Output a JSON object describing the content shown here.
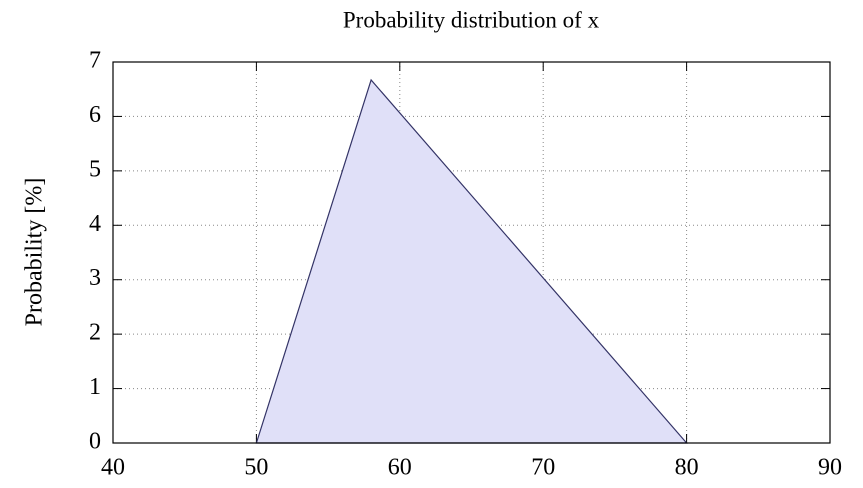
{
  "chart_data": {
    "type": "area",
    "title": "Probability distribution of x",
    "y_label": "Probability [%]",
    "x": [
      50,
      58,
      80
    ],
    "values": [
      0,
      6.67,
      0
    ],
    "color": "#e0e0f8",
    "line_color": "#333366",
    "xlim": [
      40,
      90
    ],
    "xticks": [
      40,
      50,
      60,
      70,
      80,
      90
    ],
    "ylim": [
      0,
      7
    ],
    "yticks": [
      0,
      1,
      2,
      3,
      4,
      5,
      6,
      7
    ],
    "grid": true
  }
}
